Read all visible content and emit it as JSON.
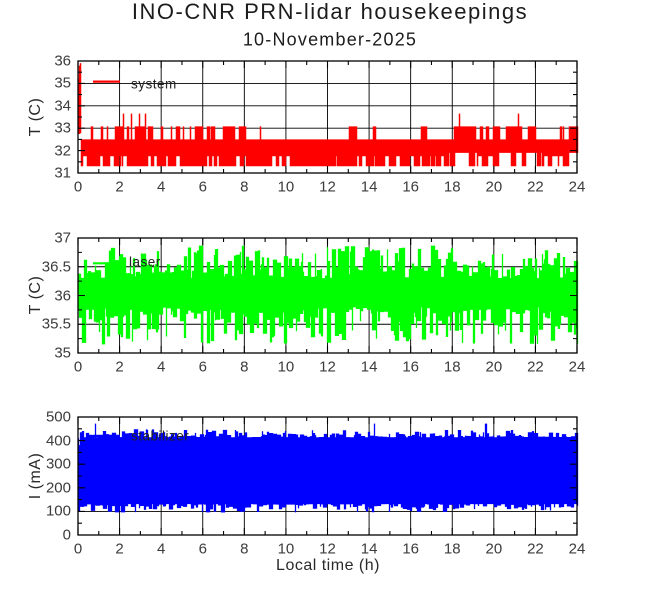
{
  "title": "INO-CNR PRN-lidar housekeepings",
  "subtitle": "10-November-2025",
  "background_color": "#ffffff",
  "axis_color": "#000000",
  "label_color": "#3c3c3c",
  "chart_data": [
    {
      "id": "system-temperature",
      "type": "line",
      "color": "#ff0000",
      "legend": {
        "label": "system",
        "line_x": [
          0.72,
          2.02
        ],
        "y_value": 35.08
      },
      "ylabel": "T (C)",
      "ylim": [
        31,
        36
      ],
      "yticks": [
        31,
        32,
        33,
        34,
        35,
        36
      ],
      "ytick_labels": [
        "31",
        "32",
        "33",
        "34",
        "35",
        "36"
      ],
      "y_minor_step": 0.5,
      "xlim": [
        0,
        24
      ],
      "xticks": [
        0,
        2,
        4,
        6,
        8,
        10,
        12,
        14,
        16,
        18,
        20,
        22,
        24
      ],
      "xtick_labels": [
        "0",
        "2",
        "4",
        "6",
        "8",
        "10",
        "12",
        "14",
        "16",
        "18",
        "20",
        "22",
        "24"
      ],
      "x_minor_step": 1,
      "grid": true,
      "seed": 20251110,
      "signal": {
        "summary": "System temperature, quantized square-wave noise mostly 31.3-33.1 C; startup spike to 36 C at t=0; warmer plateaus near 33.1 C around t=2.2-3.3, 17.8-19.1, 20-22.3 and 23.3-24 h; occasional spikes to 33.65 C.",
        "segments": [
          {
            "x0": 0.0,
            "x1": 0.14,
            "lo_range": [
              32.5,
              33.0
            ],
            "hi_range": [
              34.4,
              36.0
            ],
            "pow": 0.35,
            "run": 1
          },
          {
            "x0": 0.14,
            "x1": 2.15,
            "lo": [
              [
                31.3,
                0.6
              ],
              [
                31.75,
                0.4
              ]
            ],
            "hi": [
              [
                32.5,
                0.72
              ],
              [
                33.08,
                0.28
              ]
            ],
            "spike": [
              33.65,
              0.012
            ],
            "run": 2
          },
          {
            "x0": 2.15,
            "x1": 3.35,
            "lo": [
              [
                31.75,
                0.55
              ],
              [
                31.3,
                0.45
              ]
            ],
            "hi": [
              [
                33.08,
                0.7
              ],
              [
                32.5,
                0.3
              ]
            ],
            "spike": [
              33.65,
              0.05
            ],
            "run": 3
          },
          {
            "x0": 3.35,
            "x1": 7.2,
            "lo": [
              [
                31.3,
                0.65
              ],
              [
                31.75,
                0.35
              ]
            ],
            "hi": [
              [
                32.5,
                0.55
              ],
              [
                33.08,
                0.45
              ]
            ],
            "spike": [
              33.65,
              0.004
            ],
            "run": 2
          },
          {
            "x0": 7.2,
            "x1": 10.3,
            "lo": [
              [
                31.3,
                0.7
              ],
              [
                31.75,
                0.3
              ]
            ],
            "hi": [
              [
                32.5,
                0.8
              ],
              [
                33.08,
                0.2
              ]
            ],
            "run": 2
          },
          {
            "x0": 10.3,
            "x1": 13.5,
            "lo": [
              [
                31.3,
                0.92
              ],
              [
                31.75,
                0.08
              ]
            ],
            "hi": [
              [
                32.5,
                0.96
              ],
              [
                33.08,
                0.04
              ]
            ],
            "run": 4
          },
          {
            "x0": 13.5,
            "x1": 17.8,
            "lo": [
              [
                31.3,
                0.8
              ],
              [
                31.75,
                0.2
              ]
            ],
            "hi": [
              [
                32.5,
                0.95
              ],
              [
                33.08,
                0.05
              ]
            ],
            "run": 2
          },
          {
            "x0": 17.8,
            "x1": 19.15,
            "lo": [
              [
                31.9,
                0.6
              ],
              [
                31.3,
                0.4
              ]
            ],
            "hi": [
              [
                33.08,
                0.65
              ],
              [
                32.5,
                0.35
              ]
            ],
            "spike": [
              33.65,
              0.015
            ],
            "run": 3
          },
          {
            "x0": 19.15,
            "x1": 19.95,
            "lo": [
              [
                31.75,
                0.6
              ],
              [
                31.3,
                0.4
              ]
            ],
            "hi": [
              [
                32.5,
                0.8
              ],
              [
                33.08,
                0.2
              ]
            ],
            "run": 2
          },
          {
            "x0": 19.95,
            "x1": 21.35,
            "lo": [
              [
                31.9,
                0.5
              ],
              [
                31.3,
                0.5
              ]
            ],
            "hi": [
              [
                33.08,
                0.6
              ],
              [
                32.5,
                0.4
              ]
            ],
            "spike": [
              33.65,
              0.015
            ],
            "run": 3
          },
          {
            "x0": 21.35,
            "x1": 22.3,
            "lo": [
              [
                31.9,
                0.6
              ],
              [
                31.3,
                0.4
              ]
            ],
            "hi": [
              [
                33.08,
                0.7
              ],
              [
                32.5,
                0.3
              ]
            ],
            "run": 3
          },
          {
            "x0": 22.3,
            "x1": 23.3,
            "lo": [
              [
                31.75,
                0.5
              ],
              [
                31.3,
                0.5
              ]
            ],
            "hi": [
              [
                32.5,
                0.85
              ],
              [
                33.08,
                0.15
              ]
            ],
            "run": 2
          },
          {
            "x0": 23.3,
            "x1": 24.01,
            "lo": [
              [
                31.9,
                0.5
              ],
              [
                31.3,
                0.5
              ]
            ],
            "hi": [
              [
                33.08,
                0.7
              ],
              [
                32.5,
                0.3
              ]
            ],
            "spike": [
              33.65,
              0.05
            ],
            "run": 2
          }
        ]
      }
    },
    {
      "id": "laser-temperature",
      "type": "line",
      "color": "#00ff00",
      "legend": {
        "label": "laser",
        "line_x": [
          0.72,
          2.02
        ],
        "y_value": 36.56
      },
      "ylabel": "T (C)",
      "ylim": [
        35,
        37
      ],
      "yticks": [
        35,
        35.5,
        36,
        36.5,
        37
      ],
      "ytick_labels": [
        "35",
        "35.5",
        "36",
        "36.5",
        "37"
      ],
      "y_minor_step": 0.25,
      "xlim": [
        0,
        24
      ],
      "xticks": [
        0,
        2,
        4,
        6,
        8,
        10,
        12,
        14,
        16,
        18,
        20,
        22,
        24
      ],
      "xtick_labels": [
        "0",
        "2",
        "4",
        "6",
        "8",
        "10",
        "12",
        "14",
        "16",
        "18",
        "20",
        "22",
        "24"
      ],
      "x_minor_step": 1,
      "grid": true,
      "seed": 424242,
      "signal": {
        "summary": "Laser temperature oscillating rapidly and uniformly between about 35.15 and 36.85 C over the full 0-24 h span.",
        "segments": [
          {
            "x0": 0.0,
            "x1": 24.01,
            "lo_range": [
              35.15,
              35.8
            ],
            "hi_range": [
              36.3,
              36.87
            ],
            "pow": 1.15,
            "run": 2
          }
        ]
      }
    },
    {
      "id": "stabilizer-current",
      "type": "line",
      "color": "#0000ff",
      "legend": {
        "label": "stabilizer",
        "line_x": [
          0.72,
          2.02
        ],
        "y_value": 420
      },
      "ylabel": "I (mA)",
      "xlabel": "Local time (h)",
      "ylim": [
        0,
        500
      ],
      "yticks": [
        0,
        100,
        200,
        300,
        400,
        500
      ],
      "ytick_labels": [
        "0",
        "100",
        "200",
        "300",
        "400",
        "500"
      ],
      "y_minor_step": 50,
      "xlim": [
        0,
        24
      ],
      "xticks": [
        0,
        2,
        4,
        6,
        8,
        10,
        12,
        14,
        16,
        18,
        20,
        22,
        24
      ],
      "xtick_labels": [
        "0",
        "2",
        "4",
        "6",
        "8",
        "10",
        "12",
        "14",
        "16",
        "18",
        "20",
        "22",
        "24"
      ],
      "x_minor_step": 1,
      "grid": true,
      "seed": 777001,
      "signal": {
        "summary": "Stabilizer current oscillating rapidly between about 100 and 430 mA for the whole day, brief startup excursion down to ~60 mA at t=0, rare peaks near 470 mA.",
        "segments": [
          {
            "x0": 0.0,
            "x1": 0.07,
            "lo_range": [
              55,
              110
            ],
            "hi_range": [
              380,
              418
            ],
            "pow": 1,
            "run": 1
          },
          {
            "x0": 0.07,
            "x1": 24.01,
            "lo_range": [
              95,
              131
            ],
            "hi_range": [
              414,
              448
            ],
            "pow": 2.0,
            "run": 2,
            "spike": [
              472,
              0.006
            ]
          }
        ]
      }
    }
  ]
}
